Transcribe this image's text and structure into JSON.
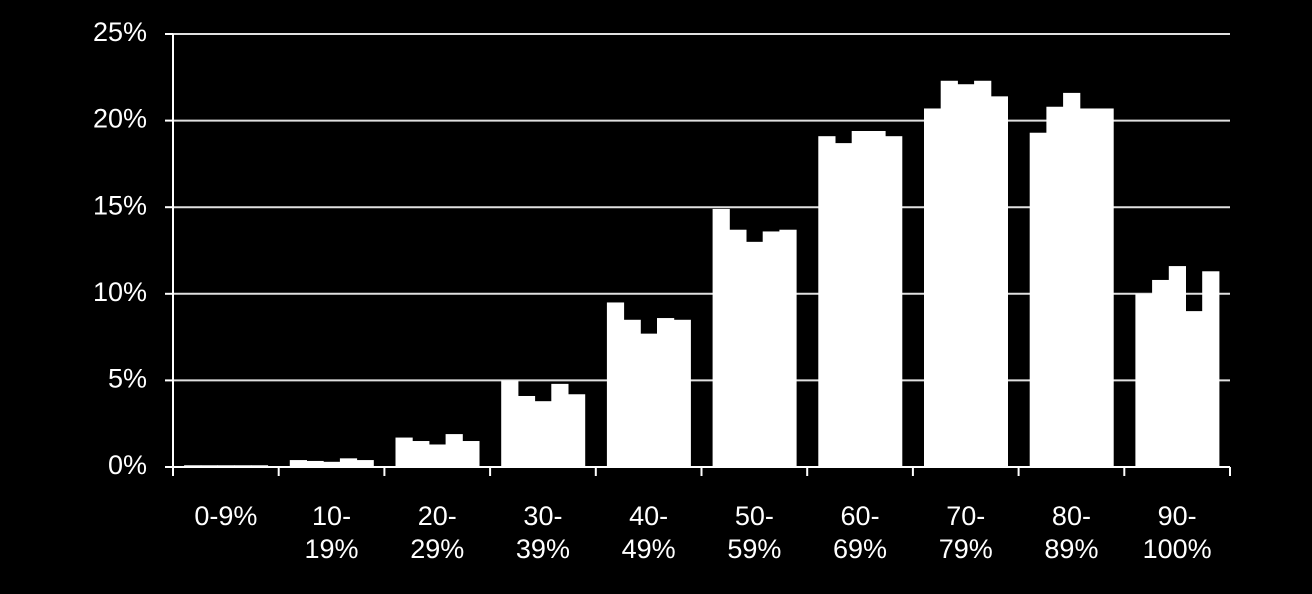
{
  "chart_data": {
    "type": "bar",
    "categories": [
      "0-9%",
      "10-\n19%",
      "20-\n29%",
      "30-\n39%",
      "40-\n49%",
      "50-\n59%",
      "60-\n69%",
      "70-\n79%",
      "80-\n89%",
      "90-\n100%"
    ],
    "series": [
      {
        "color": "#ffffff",
        "values": [
          0.1,
          0.4,
          1.7,
          5.0,
          9.5,
          14.9,
          19.1,
          20.7,
          19.3,
          10.0
        ]
      },
      {
        "color": "#ffffff",
        "values": [
          0.1,
          0.35,
          1.5,
          4.1,
          8.5,
          13.7,
          18.7,
          22.3,
          20.8,
          10.8
        ]
      },
      {
        "color": "#ffffff",
        "values": [
          0.1,
          0.3,
          1.3,
          3.8,
          7.7,
          13.0,
          19.4,
          22.1,
          21.6,
          11.6
        ]
      },
      {
        "color": "#ffffff",
        "values": [
          0.1,
          0.5,
          1.9,
          4.8,
          8.6,
          13.6,
          19.4,
          22.3,
          20.7,
          9.0
        ]
      },
      {
        "color": "#ffffff",
        "values": [
          0.1,
          0.4,
          1.5,
          4.2,
          8.5,
          13.7,
          19.1,
          21.4,
          20.7,
          11.3
        ]
      }
    ],
    "ylim": [
      0,
      25
    ],
    "yticks": [
      {
        "value": 0,
        "label": "0%"
      },
      {
        "value": 5,
        "label": "5%"
      },
      {
        "value": 10,
        "label": "10%"
      },
      {
        "value": 15,
        "label": "15%"
      },
      {
        "value": 20,
        "label": "20%"
      },
      {
        "value": 25,
        "label": "25%"
      }
    ],
    "grid": true
  }
}
